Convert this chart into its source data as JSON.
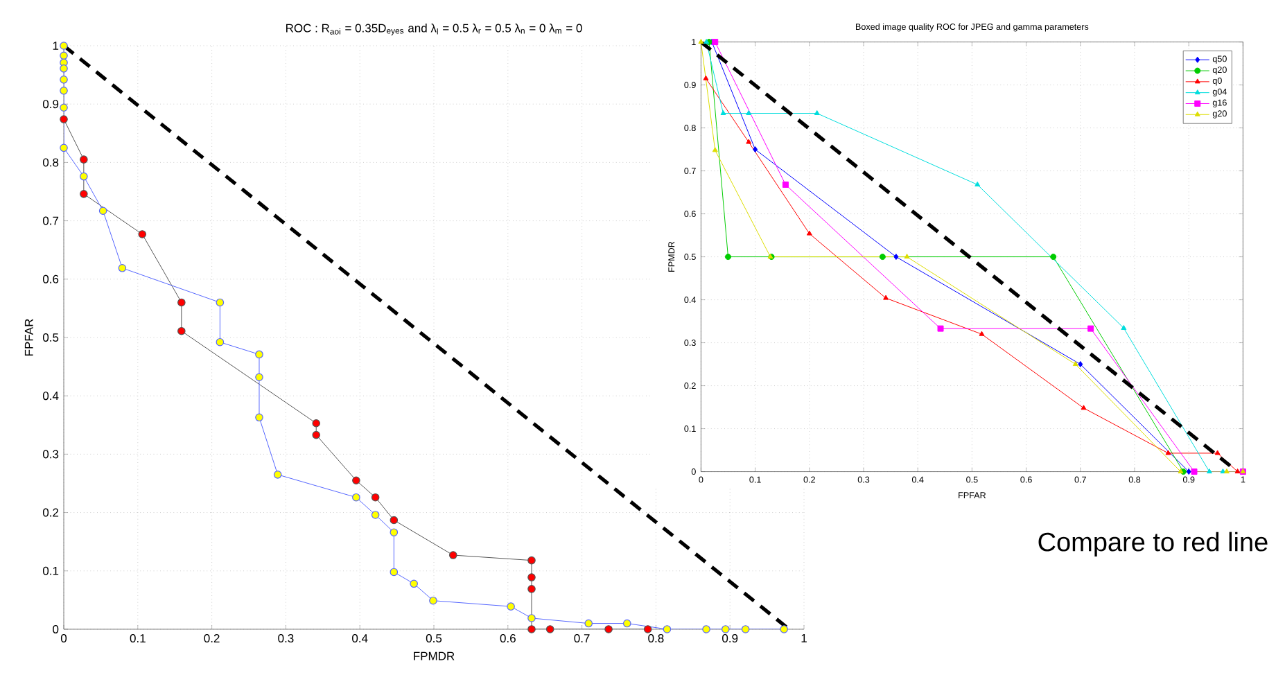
{
  "chart_data": [
    {
      "type": "line",
      "title": "ROC : R$_{aoi}$ = 0.35D$_{eyes}$  and λ$_{l}$ = 0.5 λ$_{r}$ = 0.5 λ$_{n}$ = 0 λ$_{m}$ = 0",
      "xlabel": "FPMDR",
      "ylabel": "FPFAR",
      "xlim": [
        0,
        1
      ],
      "ylim": [
        0,
        1
      ],
      "xticks": [
        0,
        0.1,
        0.2,
        0.3,
        0.4,
        0.5,
        0.6,
        0.7,
        0.8,
        0.9,
        1
      ],
      "yticks": [
        0,
        0.1,
        0.2,
        0.3,
        0.4,
        0.5,
        0.6,
        0.7,
        0.8,
        0.9,
        1
      ],
      "grid": true,
      "series": [
        {
          "color": "#555555",
          "marker": "circle",
          "x": [
            0,
            0.027,
            0.027,
            0.106,
            0.159,
            0.159,
            0.341,
            0.341,
            0.395,
            0.421,
            0.446,
            0.526,
            0.632,
            0.632,
            0.632,
            0.632,
            0.657,
            0.736,
            0.789
          ],
          "values": [
            0.874,
            0.805,
            0.746,
            0.677,
            0.56,
            0.511,
            0.353,
            0.333,
            0.255,
            0.226,
            0.187,
            0.127,
            0.118,
            0.089,
            0.069,
            0,
            0,
            0,
            0
          ],
          "colors": [
            "#ff0000",
            "#ff0000",
            "#ff0000",
            "#ff0000",
            "#ff0000",
            "#ff0000",
            "#ff0000",
            "#ff0000",
            "#ff0000",
            "#ff0000",
            "#ff0000",
            "#ff0000",
            "#ff0000",
            "#ff0000",
            "#ff0000",
            "#ff0000",
            "#ff0000",
            "#ff0000",
            "#ff0000"
          ]
        },
        {
          "color": "#5566ff",
          "marker": "circle",
          "x": [
            0,
            0,
            0,
            0,
            0,
            0,
            0,
            0,
            0.027,
            0.053,
            0.079,
            0.211,
            0.211,
            0.264,
            0.264,
            0.264,
            0.289,
            0.395,
            0.421,
            0.446,
            0.446,
            0.473,
            0.499,
            0.604,
            0.632,
            0.709,
            0.761,
            0.815,
            0.868,
            0.894,
            0.921,
            0.973
          ],
          "values": [
            1,
            0.983,
            0.971,
            0.961,
            0.942,
            0.923,
            0.894,
            0.825,
            0.776,
            0.717,
            0.619,
            0.56,
            0.492,
            0.471,
            0.432,
            0.363,
            0.265,
            0.226,
            0.196,
            0.166,
            0.098,
            0.078,
            0.049,
            0.039,
            0.019,
            0.01,
            0.01,
            0,
            0,
            0,
            0,
            0
          ],
          "colors": [
            "#ffff00",
            "#ffff00",
            "#ffff00",
            "#ffff00",
            "#ffff00",
            "#ffff00",
            "#ffff00",
            "#ffff00",
            "#ffff00",
            "#ffff00",
            "#ffff00",
            "#ffff00",
            "#ffff00",
            "#ffff00",
            "#ffff00",
            "#ffff00",
            "#ffff00",
            "#ffff00",
            "#ffff00",
            "#ffff00",
            "#ffff00",
            "#ffff00",
            "#ffff00",
            "#ffff00",
            "#ffff00",
            "#ffff00",
            "#ffff00",
            "#ffff00",
            "#ffff00",
            "#ffff00",
            "#ffff00",
            "#ffff00"
          ]
        },
        {
          "color": "#000000",
          "marker": "none",
          "line_style": "dashed",
          "x": [
            0,
            0.98
          ],
          "values": [
            1,
            0
          ]
        }
      ]
    },
    {
      "type": "line",
      "title": "Boxed image quality ROC for JPEG and gamma parameters",
      "xlabel": "FPFAR",
      "ylabel": "FPMDR",
      "xlim": [
        0,
        1
      ],
      "ylim": [
        0,
        1
      ],
      "xticks": [
        0,
        0.1,
        0.2,
        0.3,
        0.4,
        0.5,
        0.6,
        0.7,
        0.8,
        0.9,
        1
      ],
      "yticks": [
        0,
        0.1,
        0.2,
        0.3,
        0.4,
        0.5,
        0.6,
        0.7,
        0.8,
        0.9,
        1
      ],
      "grid": true,
      "legend": "top right",
      "annotations": [
        "Compare to red line"
      ],
      "series": [
        {
          "name": "q50",
          "color": "#0000ff",
          "marker": "diamond",
          "x": [
            0.02,
            0.1,
            0.36,
            0.7,
            0.9,
            1
          ],
          "values": [
            1,
            0.75,
            0.5,
            0.25,
            0,
            0
          ]
        },
        {
          "name": "q20",
          "color": "#00cc00",
          "marker": "circle",
          "x": [
            0.015,
            0.05,
            0.13,
            0.335,
            0.65,
            0.89,
            1
          ],
          "values": [
            1,
            0.5,
            0.5,
            0.5,
            0.5,
            0,
            0
          ]
        },
        {
          "name": "q0",
          "color": "#ff0000",
          "marker": "triangle",
          "x": [
            0.009,
            0.088,
            0.2,
            0.341,
            0.518,
            0.706,
            0.862,
            0.953,
            0.99
          ],
          "values": [
            0.915,
            0.767,
            0.554,
            0.404,
            0.32,
            0.148,
            0.043,
            0.043,
            0
          ]
        },
        {
          "name": "g04",
          "color": "#00dddd",
          "marker": "triangle",
          "x": [
            0.01,
            0.041,
            0.088,
            0.214,
            0.51,
            0.78,
            0.938,
            0.963,
            1
          ],
          "values": [
            1,
            0.834,
            0.834,
            0.834,
            0.668,
            0.334,
            0,
            0,
            0
          ]
        },
        {
          "name": "g16",
          "color": "#ff00ff",
          "marker": "square",
          "x": [
            0.026,
            0.156,
            0.442,
            0.719,
            0.91,
            1
          ],
          "values": [
            1,
            0.668,
            0.333,
            0.333,
            0,
            0
          ]
        },
        {
          "name": "g20",
          "color": "#dddd00",
          "marker": "triangle",
          "x": [
            0,
            0.026,
            0.128,
            0.38,
            0.691,
            0.885,
            0.97,
            1
          ],
          "values": [
            1,
            0.748,
            0.5,
            0.5,
            0.25,
            0,
            0,
            0
          ]
        },
        {
          "color": "#000000",
          "marker": "none",
          "line_style": "dashed",
          "x": [
            0,
            0.99
          ],
          "values": [
            1,
            0
          ]
        }
      ]
    }
  ]
}
